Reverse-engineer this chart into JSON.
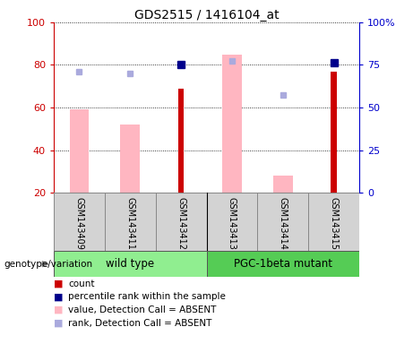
{
  "title": "GDS2515 / 1416104_at",
  "samples": [
    "GSM143409",
    "GSM143411",
    "GSM143412",
    "GSM143413",
    "GSM143414",
    "GSM143415"
  ],
  "group1_name": "wild type",
  "group1_color": "#90EE90",
  "group1_indices": [
    0,
    1,
    2
  ],
  "group2_name": "PGC-1beta mutant",
  "group2_color": "#55CC55",
  "group2_indices": [
    3,
    4,
    5
  ],
  "ylim_left": [
    20,
    100
  ],
  "ylim_right": [
    0,
    100
  ],
  "yticks_left": [
    20,
    40,
    60,
    80,
    100
  ],
  "yticks_right": [
    0,
    25,
    50,
    75,
    100
  ],
  "ytick_labels_right": [
    "0",
    "25",
    "50",
    "75",
    "100%"
  ],
  "bars_red_vals": [
    null,
    null,
    69,
    null,
    null,
    77
  ],
  "bars_pink_vals": [
    59,
    52,
    null,
    85,
    28,
    null
  ],
  "dots_blue_vals": [
    null,
    null,
    80,
    null,
    null,
    81
  ],
  "dots_lightblue_vals": [
    77,
    76,
    null,
    82,
    66,
    null
  ],
  "bar_bottom": 20,
  "pink_bar_width": 0.38,
  "red_bar_width": 0.12,
  "color_red": "#CC0000",
  "color_pink": "#FFB6C1",
  "color_blue": "#00008B",
  "color_lightblue": "#AAAADD",
  "color_axis_left": "#CC0000",
  "color_axis_right": "#0000CC",
  "legend": [
    {
      "label": "count",
      "color": "#CC0000"
    },
    {
      "label": "percentile rank within the sample",
      "color": "#00008B"
    },
    {
      "label": "value, Detection Call = ABSENT",
      "color": "#FFB6C1"
    },
    {
      "label": "rank, Detection Call = ABSENT",
      "color": "#AAAADD"
    }
  ]
}
